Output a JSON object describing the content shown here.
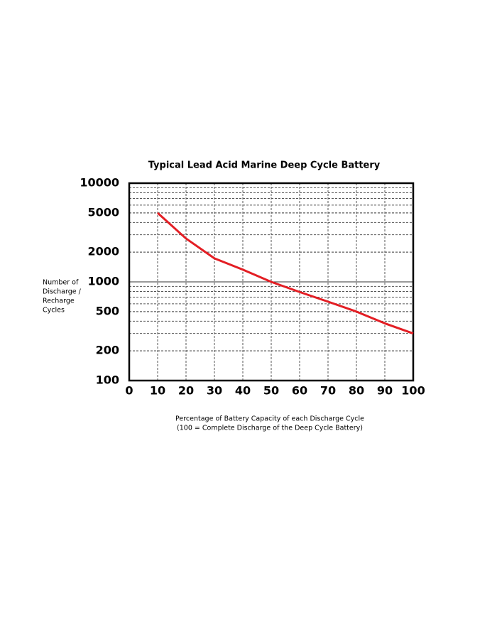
{
  "chart_data": {
    "type": "line",
    "title": "Typical Lead Acid Marine Deep Cycle Battery",
    "ylabel": [
      "Number of",
      "Discharge /",
      "Recharge",
      "Cycles"
    ],
    "xlabel": [
      "Percentage of Battery Capacity of each Discharge Cycle",
      "(100 = Complete Discharge of  the Deep Cycle Battery)"
    ],
    "x": [
      10,
      20,
      30,
      40,
      50,
      60,
      70,
      80,
      90,
      100
    ],
    "series": [
      {
        "name": "Cycles",
        "color": "#e31e24",
        "values": [
          5000,
          2750,
          1730,
          1330,
          1000,
          790,
          630,
          500,
          380,
          300
        ]
      }
    ],
    "xlim": [
      0,
      100
    ],
    "xticks": [
      0,
      10,
      20,
      30,
      40,
      50,
      60,
      70,
      80,
      90,
      100
    ],
    "ylim": [
      100,
      10000
    ],
    "yticks": [
      100,
      200,
      500,
      1000,
      2000,
      5000,
      10000
    ],
    "ylog": true,
    "grid": true,
    "minor_grid": true
  }
}
